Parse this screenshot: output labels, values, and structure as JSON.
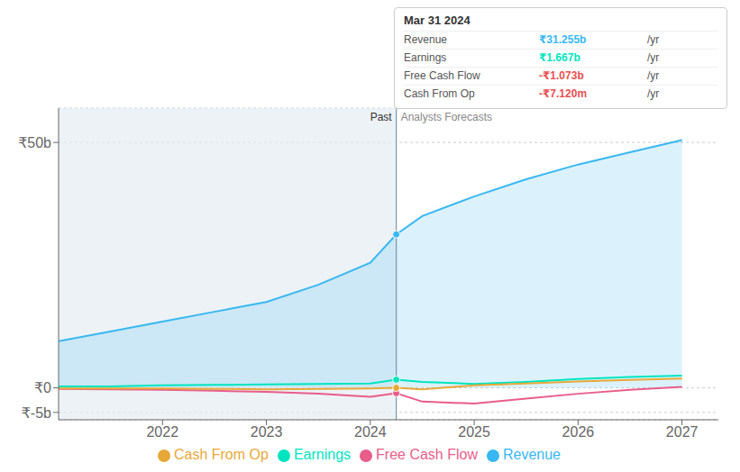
{
  "chart_data": {
    "type": "line",
    "x": [
      2021.0,
      2021.5,
      2022.0,
      2022.5,
      2023.0,
      2023.5,
      2024.0,
      2024.25,
      2024.5,
      2025.0,
      2025.5,
      2026.0,
      2026.5,
      2027.0
    ],
    "series": [
      {
        "name": "Revenue",
        "type": "area",
        "color": "#38b8f2",
        "values": [
          9.5,
          11.5,
          13.5,
          15.5,
          17.5,
          21.0,
          25.5,
          31.255,
          35.0,
          39.0,
          42.5,
          45.5,
          48.0,
          50.5
        ]
      },
      {
        "name": "Earnings",
        "color": "#00e5c0",
        "values": [
          0.3,
          0.3,
          0.5,
          0.6,
          0.7,
          0.8,
          0.9,
          1.667,
          1.2,
          0.8,
          1.2,
          1.8,
          2.2,
          2.5
        ]
      },
      {
        "name": "Free Cash Flow",
        "color": "#e85d8a",
        "values": [
          -0.2,
          -0.3,
          -0.4,
          -0.6,
          -0.8,
          -1.2,
          -1.8,
          -1.073,
          -2.8,
          -3.2,
          -2.2,
          -1.2,
          -0.4,
          0.2
        ]
      },
      {
        "name": "Cash From Op",
        "color": "#e8a838",
        "values": [
          -0.1,
          -0.1,
          -0.1,
          -0.2,
          -0.3,
          -0.2,
          -0.1,
          -0.007,
          -0.3,
          0.5,
          0.9,
          1.3,
          1.6,
          1.9
        ]
      }
    ],
    "xlim": [
      2021.0,
      2027.35
    ],
    "xticks": [
      2022,
      2023,
      2024,
      2025,
      2026,
      2027
    ],
    "ylim": [
      -6.5,
      57
    ],
    "yticks": [
      {
        "value": -5,
        "label": "₹-5b"
      },
      {
        "value": 0,
        "label": "₹0"
      },
      {
        "value": 50,
        "label": "₹50b"
      }
    ],
    "grid": true,
    "legend": "bottom",
    "annotations": [
      {
        "text": "Past",
        "x": 2024.25
      },
      {
        "text": "Analysts Forecasts",
        "x": 2024.25
      },
      {
        "title": "Mar 31 2024",
        "x": 2024.25,
        "rows": [
          {
            "label": "Revenue",
            "value": "₹31.255b",
            "unit": "/yr",
            "color": "#38b8f2"
          },
          {
            "label": "Earnings",
            "value": "₹1.667b",
            "unit": "/yr",
            "color": "#00e5c0"
          },
          {
            "label": "Free Cash Flow",
            "value": "-₹1.073b",
            "unit": "/yr",
            "color": "#e85050"
          },
          {
            "label": "Cash From Op",
            "value": "-₹7.120m",
            "unit": "/yr",
            "color": "#e85050"
          }
        ]
      }
    ]
  }
}
